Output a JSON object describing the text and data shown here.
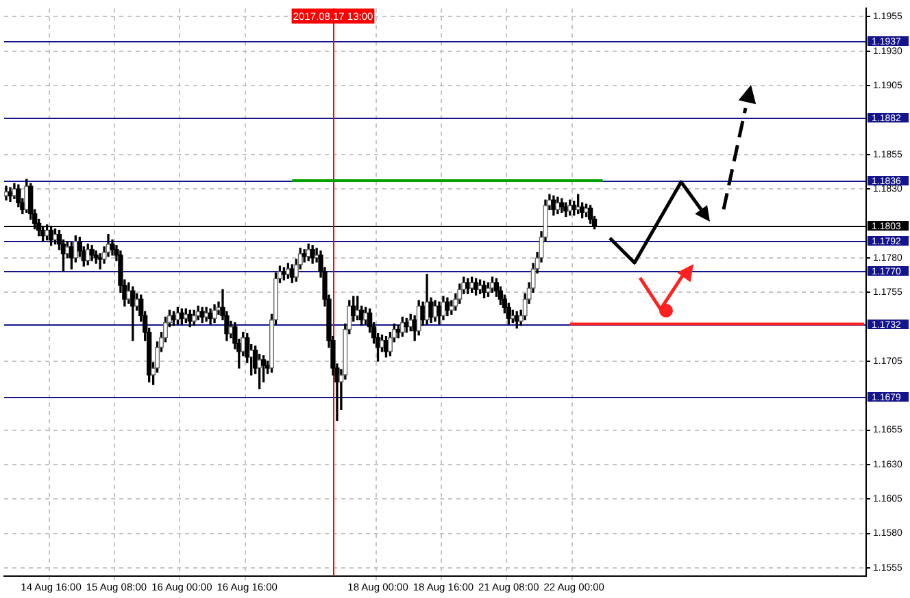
{
  "chart_data": {
    "type": "candlestick",
    "categories": [
      null,
      null,
      null,
      null,
      null,
      null,
      null,
      null,
      null,
      null,
      null,
      "14 Aug 16:00",
      null,
      null,
      null,
      null,
      null,
      null,
      null,
      null,
      null,
      null,
      null,
      null,
      null,
      null,
      null,
      "15 Aug 08:00",
      null,
      null,
      null,
      null,
      null,
      null,
      null,
      null,
      null,
      null,
      null,
      null,
      null,
      null,
      null,
      "16 Aug 00:00",
      null,
      null,
      null,
      null,
      null,
      null,
      null,
      null,
      null,
      null,
      null,
      null,
      null,
      null,
      null,
      "16 Aug 16:00",
      null,
      null,
      null,
      null,
      null,
      null,
      null,
      null,
      null,
      null,
      null,
      null,
      null,
      null,
      null,
      null,
      null,
      null,
      null,
      null,
      "2017.08.17 13:00",
      null,
      null,
      null,
      null,
      null,
      null,
      null,
      null,
      null,
      null,
      "18 Aug 00:00",
      null,
      null,
      null,
      null,
      null,
      null,
      null,
      null,
      null,
      null,
      null,
      null,
      null,
      null,
      null,
      "18 Aug 16:00",
      null,
      null,
      null,
      null,
      null,
      null,
      null,
      null,
      null,
      null,
      null,
      null,
      null,
      null,
      null,
      "21 Aug 08:00",
      null,
      null,
      null,
      null,
      null,
      null,
      null,
      null,
      null,
      null,
      null,
      null,
      null,
      null,
      null,
      "22 Aug 00:00",
      null,
      null,
      null,
      null,
      null,
      null,
      null,
      null,
      null,
      null,
      null,
      null,
      null,
      null,
      null,
      null,
      null,
      null,
      null,
      null,
      null,
      null,
      null,
      null,
      null,
      null,
      null,
      null,
      null,
      null,
      null,
      null,
      null,
      null,
      null,
      null,
      null,
      null,
      null,
      null,
      null,
      null,
      null,
      null,
      null,
      null,
      null,
      null,
      null,
      null,
      null,
      null,
      null,
      null,
      null,
      null,
      null,
      null,
      null,
      null,
      null,
      null,
      null,
      null,
      null,
      null,
      null,
      null,
      null,
      null,
      null
    ],
    "ohlc": [
      [
        1.1825,
        1.1832,
        1.1822,
        1.1828
      ],
      [
        1.1828,
        1.1831,
        1.1821,
        1.1825
      ],
      [
        1.1825,
        1.1834,
        1.1823,
        1.183
      ],
      [
        1.183,
        1.1833,
        1.1817,
        1.182
      ],
      [
        1.182,
        1.1823,
        1.1812,
        1.1815
      ],
      [
        1.1815,
        1.1837,
        1.1813,
        1.1832
      ],
      [
        1.1832,
        1.1834,
        1.1808,
        1.1812
      ],
      [
        1.1812,
        1.1815,
        1.1801,
        1.1805
      ],
      [
        1.1805,
        1.1808,
        1.1796,
        1.18
      ],
      [
        1.18,
        1.1803,
        1.1792,
        1.1796
      ],
      [
        1.1796,
        1.1804,
        1.1793,
        1.18
      ],
      [
        1.18,
        1.1803,
        1.1789,
        1.1793
      ],
      [
        1.1793,
        1.1801,
        1.179,
        1.1797
      ],
      [
        1.1797,
        1.18,
        1.1786,
        1.179
      ],
      [
        1.179,
        1.1793,
        1.177,
        1.1783
      ],
      [
        1.1783,
        1.1792,
        1.178,
        1.1788
      ],
      [
        1.1788,
        1.1791,
        1.1772,
        1.178
      ],
      [
        1.178,
        1.1796,
        1.1777,
        1.1792
      ],
      [
        1.1792,
        1.1795,
        1.1781,
        1.1785
      ],
      [
        1.1785,
        1.1788,
        1.1774,
        1.1778
      ],
      [
        1.1778,
        1.179,
        1.1775,
        1.1786
      ],
      [
        1.1786,
        1.1789,
        1.1778,
        1.1782
      ],
      [
        1.1782,
        1.1785,
        1.1776,
        1.178
      ],
      [
        1.178,
        1.1783,
        1.1772,
        1.1779
      ],
      [
        1.1779,
        1.1788,
        1.1776,
        1.1784
      ],
      [
        1.1784,
        1.1797,
        1.1781,
        1.179
      ],
      [
        1.179,
        1.1793,
        1.1782,
        1.1786
      ],
      [
        1.1786,
        1.1789,
        1.1778,
        1.1782
      ],
      [
        1.1782,
        1.1785,
        1.1755,
        1.176
      ],
      [
        1.176,
        1.1764,
        1.1745,
        1.175
      ],
      [
        1.175,
        1.1762,
        1.1747,
        1.1756
      ],
      [
        1.1756,
        1.1759,
        1.172,
        1.1745
      ],
      [
        1.1745,
        1.1754,
        1.1742,
        1.175
      ],
      [
        1.175,
        1.1753,
        1.1734,
        1.1738
      ],
      [
        1.1738,
        1.1741,
        1.172,
        1.1726
      ],
      [
        1.1726,
        1.1729,
        1.169,
        1.1695
      ],
      [
        1.1695,
        1.1704,
        1.1688,
        1.17
      ],
      [
        1.17,
        1.1719,
        1.1697,
        1.1715
      ],
      [
        1.1715,
        1.1726,
        1.1712,
        1.1722
      ],
      [
        1.1722,
        1.1737,
        1.1719,
        1.1733
      ],
      [
        1.1733,
        1.1742,
        1.173,
        1.1738
      ],
      [
        1.1738,
        1.1741,
        1.1731,
        1.1735
      ],
      [
        1.1735,
        1.1744,
        1.1732,
        1.174
      ],
      [
        1.174,
        1.1743,
        1.1732,
        1.1736
      ],
      [
        1.1736,
        1.1743,
        1.1733,
        1.1739
      ],
      [
        1.1739,
        1.1742,
        1.173,
        1.1734
      ],
      [
        1.1734,
        1.1742,
        1.1731,
        1.1738
      ],
      [
        1.1738,
        1.1745,
        1.1735,
        1.1741
      ],
      [
        1.1741,
        1.1744,
        1.1733,
        1.1737
      ],
      [
        1.1737,
        1.1744,
        1.1734,
        1.174
      ],
      [
        1.174,
        1.1743,
        1.1732,
        1.1736
      ],
      [
        1.1736,
        1.1746,
        1.1733,
        1.1742
      ],
      [
        1.1742,
        1.1748,
        1.1739,
        1.1744
      ],
      [
        1.1744,
        1.1757,
        1.1735,
        1.1738
      ],
      [
        1.1738,
        1.1741,
        1.172,
        1.1725
      ],
      [
        1.1725,
        1.1734,
        1.1722,
        1.173
      ],
      [
        1.173,
        1.1733,
        1.1714,
        1.1718
      ],
      [
        1.1718,
        1.1721,
        1.17,
        1.1712
      ],
      [
        1.1712,
        1.1726,
        1.1709,
        1.1722
      ],
      [
        1.1722,
        1.1725,
        1.1704,
        1.1708
      ],
      [
        1.1708,
        1.1717,
        1.1695,
        1.1713
      ],
      [
        1.1713,
        1.1716,
        1.1696,
        1.17
      ],
      [
        1.17,
        1.171,
        1.1685,
        1.1706
      ],
      [
        1.1706,
        1.1709,
        1.169,
        1.1702
      ],
      [
        1.1702,
        1.1705,
        1.1696,
        1.17
      ],
      [
        1.17,
        1.1739,
        1.1697,
        1.1735
      ],
      [
        1.1735,
        1.1769,
        1.1732,
        1.1765
      ],
      [
        1.1765,
        1.1774,
        1.1762,
        1.177
      ],
      [
        1.177,
        1.1773,
        1.1764,
        1.1768
      ],
      [
        1.1768,
        1.1776,
        1.1765,
        1.1772
      ],
      [
        1.1772,
        1.1775,
        1.1762,
        1.1766
      ],
      [
        1.1766,
        1.1779,
        1.1763,
        1.1775
      ],
      [
        1.1775,
        1.1787,
        1.1772,
        1.1783
      ],
      [
        1.1783,
        1.1786,
        1.1777,
        1.1781
      ],
      [
        1.1781,
        1.179,
        1.1778,
        1.1786
      ],
      [
        1.1786,
        1.1789,
        1.1776,
        1.178
      ],
      [
        1.178,
        1.1787,
        1.1777,
        1.1782
      ],
      [
        1.1782,
        1.1785,
        1.1766,
        1.177
      ],
      [
        1.177,
        1.1773,
        1.1745,
        1.175
      ],
      [
        1.175,
        1.1753,
        1.1715,
        1.172
      ],
      [
        1.172,
        1.1723,
        1.1695,
        1.17
      ],
      [
        1.17,
        1.1703,
        1.1662,
        1.169
      ],
      [
        1.169,
        1.1699,
        1.167,
        1.1695
      ],
      [
        1.1695,
        1.1732,
        1.1692,
        1.1728
      ],
      [
        1.1728,
        1.1749,
        1.1725,
        1.1745
      ],
      [
        1.1745,
        1.1752,
        1.1734,
        1.1738
      ],
      [
        1.1738,
        1.1752,
        1.1735,
        1.1742
      ],
      [
        1.1742,
        1.1745,
        1.1731,
        1.1735
      ],
      [
        1.1735,
        1.1744,
        1.1732,
        1.174
      ],
      [
        1.174,
        1.1743,
        1.1726,
        1.173
      ],
      [
        1.173,
        1.1733,
        1.1718,
        1.1722
      ],
      [
        1.1722,
        1.1725,
        1.1705,
        1.1715
      ],
      [
        1.1715,
        1.1724,
        1.1712,
        1.172
      ],
      [
        1.172,
        1.1723,
        1.1708,
        1.1712
      ],
      [
        1.1712,
        1.1726,
        1.1709,
        1.1722
      ],
      [
        1.1722,
        1.1732,
        1.1719,
        1.1728
      ],
      [
        1.1728,
        1.1731,
        1.1722,
        1.1726
      ],
      [
        1.1726,
        1.1737,
        1.1723,
        1.1733
      ],
      [
        1.1733,
        1.1736,
        1.1726,
        1.173
      ],
      [
        1.173,
        1.1739,
        1.1727,
        1.1735
      ],
      [
        1.1735,
        1.1738,
        1.172,
        1.1727
      ],
      [
        1.1727,
        1.1749,
        1.1724,
        1.1745
      ],
      [
        1.1745,
        1.1748,
        1.1731,
        1.1735
      ],
      [
        1.1735,
        1.1768,
        1.1732,
        1.1748
      ],
      [
        1.1748,
        1.1751,
        1.1733,
        1.1737
      ],
      [
        1.1737,
        1.1749,
        1.1734,
        1.1745
      ],
      [
        1.1745,
        1.1748,
        1.1732,
        1.1738
      ],
      [
        1.1738,
        1.1752,
        1.1735,
        1.1748
      ],
      [
        1.1748,
        1.1751,
        1.1738,
        1.1742
      ],
      [
        1.1742,
        1.1749,
        1.1739,
        1.1745
      ],
      [
        1.1745,
        1.1754,
        1.1742,
        1.175
      ],
      [
        1.175,
        1.1761,
        1.1747,
        1.1757
      ],
      [
        1.1757,
        1.1766,
        1.1754,
        1.1762
      ],
      [
        1.1762,
        1.1765,
        1.1754,
        1.1758
      ],
      [
        1.1758,
        1.1766,
        1.1755,
        1.1762
      ],
      [
        1.1762,
        1.1765,
        1.1753,
        1.1757
      ],
      [
        1.1757,
        1.1764,
        1.1754,
        1.176
      ],
      [
        1.176,
        1.1763,
        1.1751,
        1.1755
      ],
      [
        1.1755,
        1.1762,
        1.1752,
        1.1758
      ],
      [
        1.1758,
        1.1766,
        1.1755,
        1.1762
      ],
      [
        1.1762,
        1.1765,
        1.1752,
        1.1756
      ],
      [
        1.1756,
        1.1759,
        1.1746,
        1.175
      ],
      [
        1.175,
        1.1753,
        1.174,
        1.1744
      ],
      [
        1.1744,
        1.1747,
        1.1732,
        1.1736
      ],
      [
        1.1736,
        1.1742,
        1.1733,
        1.1738
      ],
      [
        1.1738,
        1.1741,
        1.1729,
        1.1734
      ],
      [
        1.1734,
        1.1742,
        1.1731,
        1.1738
      ],
      [
        1.1738,
        1.1754,
        1.1735,
        1.175
      ],
      [
        1.175,
        1.1762,
        1.1747,
        1.1758
      ],
      [
        1.1758,
        1.1776,
        1.1755,
        1.1772
      ],
      [
        1.1772,
        1.1784,
        1.1769,
        1.178
      ],
      [
        1.178,
        1.1799,
        1.1777,
        1.1795
      ],
      [
        1.1795,
        1.1822,
        1.1792,
        1.1818
      ],
      [
        1.1818,
        1.1826,
        1.1815,
        1.1822
      ],
      [
        1.1822,
        1.1825,
        1.1811,
        1.1815
      ],
      [
        1.1815,
        1.1824,
        1.1812,
        1.182
      ],
      [
        1.182,
        1.1823,
        1.1813,
        1.1817
      ],
      [
        1.1817,
        1.182,
        1.181,
        1.1814
      ],
      [
        1.1814,
        1.1822,
        1.1811,
        1.1818
      ],
      [
        1.1818,
        1.1821,
        1.1811,
        1.1815
      ],
      [
        1.1815,
        1.1826,
        1.1812,
        1.1817
      ],
      [
        1.1817,
        1.182,
        1.1809,
        1.1813
      ],
      [
        1.1813,
        1.1819,
        1.181,
        1.1816
      ],
      [
        1.1816,
        1.1818,
        1.1805,
        1.1808
      ],
      [
        1.1808,
        1.181,
        1.1801,
        1.1803
      ],
      null,
      null,
      null,
      null,
      null,
      null,
      null,
      null,
      null,
      null,
      null,
      null,
      null,
      null,
      null,
      null,
      null,
      null,
      null,
      null,
      null,
      null,
      null,
      null,
      null,
      null,
      null,
      null,
      null,
      null,
      null,
      null,
      null,
      null,
      null,
      null,
      null,
      null,
      null,
      null,
      null,
      null,
      null,
      null,
      null,
      null,
      null,
      null,
      null,
      null,
      null,
      null,
      null,
      null,
      null,
      null,
      null,
      null,
      null,
      null,
      null,
      null,
      null,
      null,
      null,
      null
    ],
    "series": [
      {
        "type": "line",
        "color": "#00a000",
        "values": [
          null,
          null,
          null,
          null,
          null,
          null,
          null,
          null,
          null,
          null,
          null,
          null,
          null,
          null,
          null,
          null,
          null,
          null,
          null,
          null,
          null,
          null,
          null,
          null,
          null,
          null,
          null,
          null,
          null,
          null,
          null,
          null,
          null,
          null,
          null,
          null,
          null,
          null,
          null,
          null,
          null,
          null,
          null,
          null,
          null,
          null,
          null,
          null,
          null,
          null,
          null,
          null,
          null,
          null,
          null,
          null,
          null,
          null,
          null,
          null,
          null,
          null,
          null,
          null,
          null,
          null,
          null,
          null,
          null,
          null,
          1.1836,
          1.1836,
          1.1836,
          1.1836,
          1.1836,
          1.1836,
          1.1836,
          1.1836,
          1.1836,
          1.1836,
          1.1836,
          1.1836,
          1.1836,
          1.1836,
          1.1836,
          1.1836,
          1.1836,
          1.1836,
          1.1836,
          1.1836,
          1.1836,
          1.1836,
          1.1836,
          1.1836,
          1.1836,
          1.1836,
          1.1836,
          1.1836,
          1.1836,
          1.1836,
          1.1836,
          1.1836,
          1.1836,
          1.1836,
          1.1836,
          1.1836,
          1.1836,
          1.1836,
          1.1836,
          1.1836,
          1.1836,
          1.1836,
          1.1836,
          1.1836,
          1.1836,
          1.1836,
          1.1836,
          1.1836,
          1.1836,
          1.1836,
          1.1836,
          1.1836,
          1.1836,
          1.1836,
          1.1836,
          1.1836,
          1.1836,
          1.1836,
          1.1836,
          1.1836,
          1.1836,
          1.1836,
          1.1836,
          1.1836,
          1.1836,
          1.1836,
          1.1836,
          1.1836,
          1.1836,
          1.1836,
          1.1836,
          1.1836,
          1.1836,
          1.1836,
          1.1836,
          1.1836,
          1.1836,
          null,
          null,
          null,
          null,
          null,
          null,
          null,
          null,
          null,
          null,
          null,
          null,
          null,
          null,
          null,
          null,
          null,
          null,
          null,
          null,
          null,
          null,
          null,
          null,
          null,
          null,
          null,
          null,
          null,
          null,
          null,
          null,
          null,
          null,
          null,
          null,
          null,
          null,
          null,
          null,
          null,
          null,
          null,
          null,
          null,
          null,
          null,
          null,
          null,
          null,
          null,
          null,
          null,
          null,
          null,
          null,
          null,
          null,
          null,
          null,
          null,
          null,
          null,
          null
        ]
      },
      {
        "type": "line",
        "color": "#ff2020",
        "values": [
          null,
          null,
          null,
          null,
          null,
          null,
          null,
          null,
          null,
          null,
          null,
          null,
          null,
          null,
          null,
          null,
          null,
          null,
          null,
          null,
          null,
          null,
          null,
          null,
          null,
          null,
          null,
          null,
          null,
          null,
          null,
          null,
          null,
          null,
          null,
          null,
          null,
          null,
          null,
          null,
          null,
          null,
          null,
          null,
          null,
          null,
          null,
          null,
          null,
          null,
          null,
          null,
          null,
          null,
          null,
          null,
          null,
          null,
          null,
          null,
          null,
          null,
          null,
          null,
          null,
          null,
          null,
          null,
          null,
          null,
          null,
          null,
          null,
          null,
          null,
          null,
          null,
          null,
          null,
          null,
          null,
          null,
          null,
          null,
          null,
          null,
          null,
          null,
          null,
          null,
          null,
          null,
          null,
          null,
          null,
          null,
          null,
          null,
          null,
          null,
          null,
          null,
          null,
          null,
          null,
          null,
          null,
          null,
          null,
          null,
          null,
          null,
          null,
          null,
          null,
          null,
          null,
          null,
          null,
          null,
          null,
          null,
          null,
          null,
          null,
          null,
          null,
          null,
          null,
          null,
          null,
          null,
          null,
          null,
          null,
          null,
          null,
          null,
          1.1732,
          1.1732,
          1.1732,
          1.1732,
          1.1732,
          1.1732,
          1.1732,
          1.1732,
          1.1732,
          1.1732,
          1.1732,
          1.1732,
          1.1732,
          1.1732,
          1.1732,
          1.1732,
          1.1732,
          1.1732,
          1.1732,
          1.1732,
          1.1732,
          1.1732,
          1.1732,
          1.1732,
          1.1732,
          1.1732,
          1.1732,
          1.1732,
          1.1732,
          1.1732,
          1.1732,
          1.1732,
          1.1732,
          1.1732,
          1.1732,
          1.1732,
          1.1732,
          1.1732,
          1.1732,
          1.1732,
          1.1732,
          1.1732,
          1.1732,
          1.1732,
          1.1732,
          1.1732,
          1.1732,
          1.1732,
          1.1732,
          1.1732,
          1.1732,
          1.1732,
          1.1732,
          1.1732,
          1.1732,
          1.1732,
          1.1732,
          1.1732,
          1.1732,
          1.1732,
          1.1732,
          1.1732,
          1.1732,
          1.1732,
          1.1732,
          1.1732,
          1.1732,
          1.1732,
          1.1732,
          1.1732,
          1.1732,
          1.1732,
          1.1732
        ]
      }
    ],
    "ylim": [
      1.1549,
      1.1961
    ],
    "yticks": [
      1.1955,
      {
        "value": 1.193,
        "label": "1.1930"
      },
      1.1905,
      1.1855,
      {
        "value": 1.183,
        "label": "1.1830"
      },
      {
        "value": 1.178,
        "label": "1.1780"
      },
      1.1755,
      1.1705,
      1.1655,
      {
        "value": 1.163,
        "label": "1.1630"
      },
      1.1605,
      {
        "value": 1.158,
        "label": "1.1580"
      },
      1.1555
    ],
    "ref_lines": [
      {
        "axis": "y",
        "value": 1.1937,
        "label": "1.1937",
        "color": "#14148c"
      },
      {
        "axis": "y",
        "value": 1.1882,
        "label": "1.1882",
        "color": "#14148c"
      },
      {
        "axis": "y",
        "value": 1.1836,
        "label": "1.1836",
        "color": "#14148c"
      },
      {
        "axis": "y",
        "value": 1.1803,
        "label": "1.1803",
        "color": "#000000"
      },
      {
        "axis": "y",
        "value": 1.1792,
        "label": "1.1792",
        "color": "#14148c"
      },
      {
        "axis": "y",
        "value": 1.177,
        "label": "1.1770",
        "color": "#14148c"
      },
      {
        "axis": "y",
        "value": 1.1732,
        "label": "1.1732",
        "color": "#14148c"
      },
      {
        "axis": "y",
        "value": 1.1679,
        "label": "1.1679",
        "color": "#14148c"
      },
      {
        "axis": "x",
        "value": "2017.08.17 13:00",
        "color": "#ff0000"
      }
    ],
    "grid": true,
    "legend": false
  }
}
